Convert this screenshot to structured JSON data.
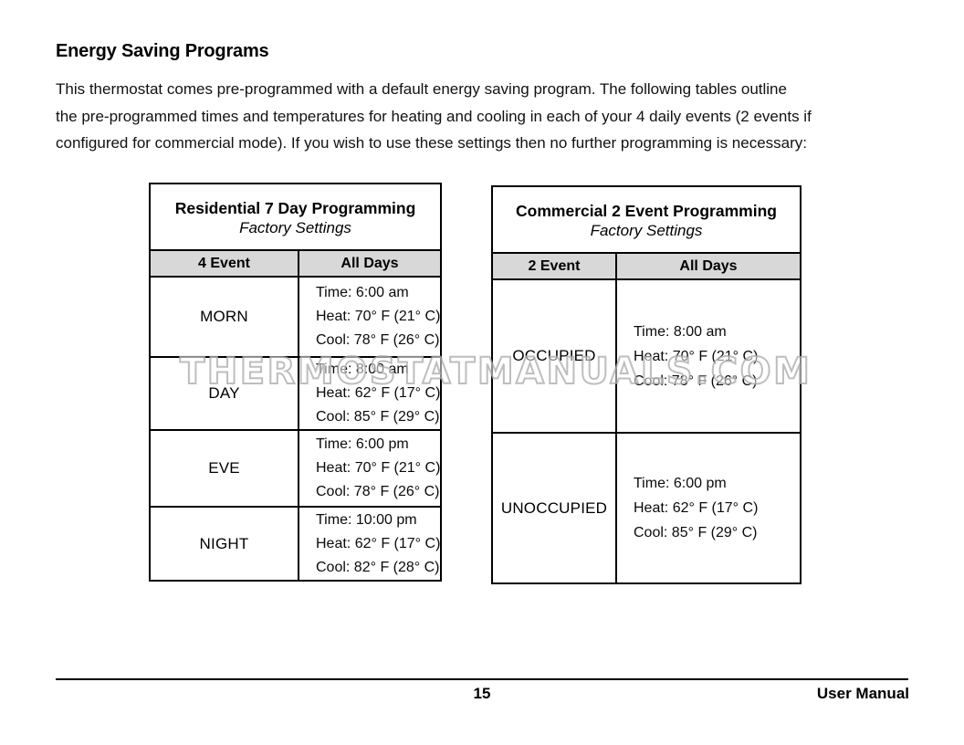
{
  "heading": "Energy Saving Programs",
  "intro": {
    "lines": [
      "This thermostat comes pre-programmed with a default energy saving program. The following tables outline",
      "the pre-programmed times and temperatures for heating and cooling in each of your 4 daily events (2 events if",
      "configured for commercial mode). If you wish to use these settings then no further programming is necessary:"
    ]
  },
  "watermark": "THERMOSTATMANUALS.COM",
  "tables": [
    {
      "title": "Residential 7 Day Programming",
      "subtitle": "Factory Settings",
      "columns": [
        "4 Event",
        "All Days"
      ],
      "rows": [
        {
          "event": "MORN",
          "details": [
            "Time: 6:00 am",
            "Heat: 70° F (21° C)",
            "Cool: 78° F (26° C)"
          ]
        },
        {
          "event": "DAY",
          "details": [
            "Time: 8:00 am",
            "Heat: 62° F (17° C)",
            "Cool: 85° F (29° C)"
          ]
        },
        {
          "event": "EVE",
          "details": [
            "Time: 6:00 pm",
            "Heat: 70° F (21° C)",
            "Cool: 78° F (26° C)"
          ]
        },
        {
          "event": "NIGHT",
          "details": [
            "Time: 10:00 pm",
            "Heat: 62° F (17° C)",
            "Cool: 82° F (28° C)"
          ]
        }
      ]
    },
    {
      "title": "Commercial 2 Event Programming",
      "subtitle": "Factory Settings",
      "columns": [
        "2 Event",
        "All Days"
      ],
      "rows": [
        {
          "event": "OCCUPIED",
          "details": [
            "Time: 8:00 am",
            "Heat: 70° F (21° C)",
            "Cool: 78° F (26° C)"
          ]
        },
        {
          "event": "UNOCCUPIED",
          "details": [
            "Time: 6:00 pm",
            "Heat: 62° F (17° C)",
            "Cool: 85° F (29° C)"
          ]
        }
      ]
    }
  ],
  "footer": {
    "page_number": "15",
    "manual_label": "User Manual"
  },
  "colors": {
    "header_bg": "#d8d8d8",
    "border": "#000000",
    "watermark_outline": "#a8a8a8",
    "background": "#ffffff"
  }
}
